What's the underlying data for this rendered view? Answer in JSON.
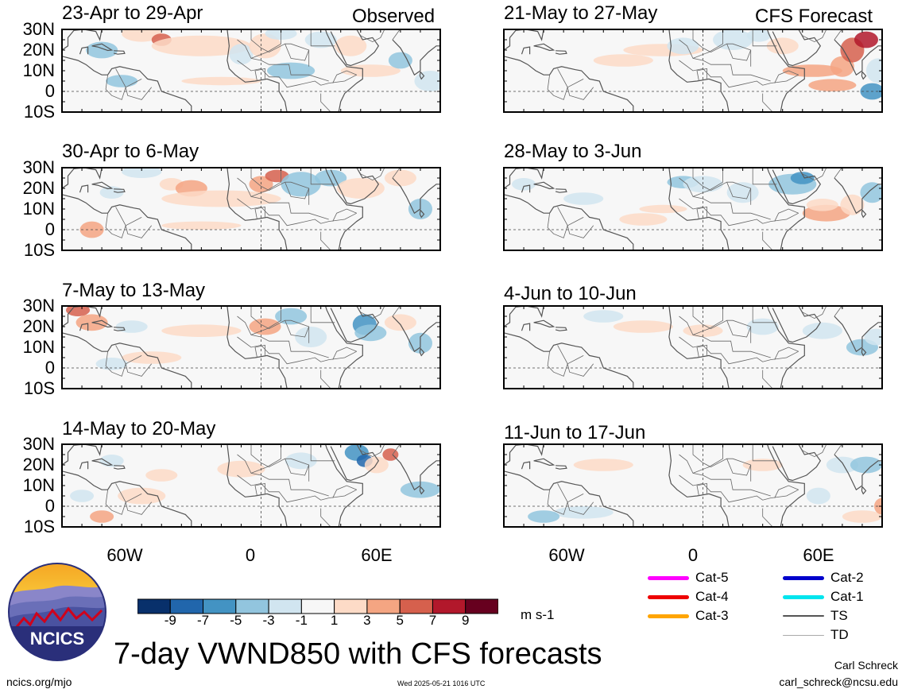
{
  "panels": [
    {
      "id": "p1",
      "title": "23-Apr to 29-Apr",
      "tag": "Observed"
    },
    {
      "id": "p2",
      "title": "30-Apr to 6-May",
      "tag": ""
    },
    {
      "id": "p3",
      "title": "7-May to 13-May",
      "tag": ""
    },
    {
      "id": "p4",
      "title": "14-May to 20-May",
      "tag": ""
    },
    {
      "id": "p5",
      "title": "21-May to 27-May",
      "tag": "CFS Forecast"
    },
    {
      "id": "p6",
      "title": "28-May to 3-Jun",
      "tag": ""
    },
    {
      "id": "p7",
      "title": "4-Jun to 10-Jun",
      "tag": ""
    },
    {
      "id": "p8",
      "title": "11-Jun to 17-Jun",
      "tag": ""
    }
  ],
  "y_labels": [
    "30N",
    "20N",
    "10N",
    "0",
    "10S"
  ],
  "x_labels": [
    "60W",
    "0",
    "60E"
  ],
  "colorbar": {
    "colors": [
      "#08306b",
      "#2166ac",
      "#4393c3",
      "#92c5de",
      "#d1e5f0",
      "#f7f7f7",
      "#fddbc7",
      "#f4a582",
      "#d6604d",
      "#b2182b",
      "#67001f"
    ],
    "ticks": [
      "-9",
      "-7",
      "-5",
      "-3",
      "-1",
      "1",
      "3",
      "5",
      "7",
      "9"
    ],
    "units": "m s-1"
  },
  "storm_legend": [
    {
      "label": "Cat-5",
      "color": "#ff00ff"
    },
    {
      "label": "Cat-4",
      "color": "#ee0000"
    },
    {
      "label": "Cat-3",
      "color": "#ffa500"
    },
    {
      "label": "Cat-2",
      "color": "#0000cc"
    },
    {
      "label": "Cat-1",
      "color": "#00e5ee"
    },
    {
      "label": "TS",
      "color": "#555555"
    },
    {
      "label": "TD",
      "color": "#aaaaaa"
    }
  ],
  "logo_text": "NCICS",
  "main_title": "7-day VWND850 with CFS forecasts",
  "footer": {
    "url": "ncics.org/mjo",
    "timestamp": "Wed 2025-05-21 1016 UTC",
    "author": "Carl Schreck",
    "email": "carl_schreck@ncsu.edu"
  }
}
